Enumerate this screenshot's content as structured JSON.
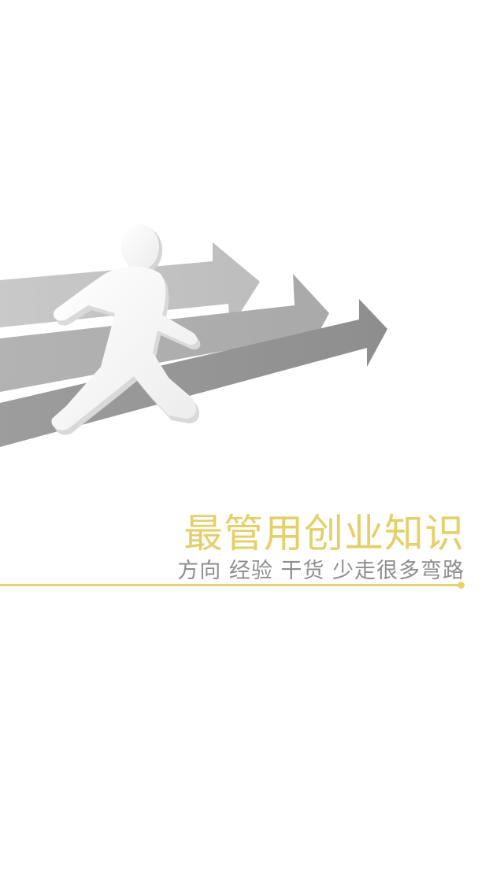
{
  "splash": {
    "headline": "最管用创业知识",
    "tagline": "方向 经验 干货 少走很多弯路",
    "illustration_icon": "walking-person-arrows-icon",
    "colors": {
      "accent": "#e4cf6a",
      "tagline": "#8e8e8e",
      "background": "#ffffff"
    }
  }
}
